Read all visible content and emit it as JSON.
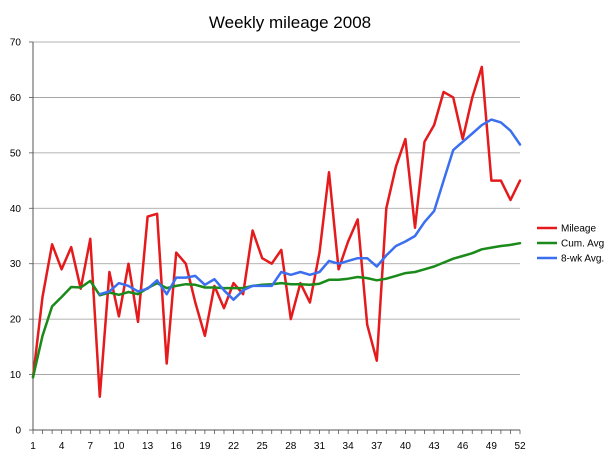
{
  "chart_data": {
    "type": "line",
    "title": "Weekly mileage 2008",
    "xlabel": "",
    "ylabel": "",
    "x": [
      1,
      2,
      3,
      4,
      5,
      6,
      7,
      8,
      9,
      10,
      11,
      12,
      13,
      14,
      15,
      16,
      17,
      18,
      19,
      20,
      21,
      22,
      23,
      24,
      25,
      26,
      27,
      28,
      29,
      30,
      31,
      32,
      33,
      34,
      35,
      36,
      37,
      38,
      39,
      40,
      41,
      42,
      43,
      44,
      45,
      46,
      47,
      48,
      49,
      50,
      51,
      52
    ],
    "x_tick_labels": [
      "1",
      "4",
      "7",
      "10",
      "13",
      "16",
      "19",
      "22",
      "25",
      "28",
      "31",
      "34",
      "37",
      "40",
      "43",
      "46",
      "49",
      "52"
    ],
    "y_ticks": [
      0,
      10,
      20,
      30,
      40,
      50,
      60,
      70
    ],
    "ylim": [
      0,
      70
    ],
    "grid": "horizontal",
    "legend_position": "right",
    "series": [
      {
        "name": "Mileage",
        "color": "#e41a1c",
        "values": [
          9.5,
          24,
          33.5,
          29,
          33,
          25.5,
          34.5,
          6,
          28.5,
          20.5,
          30,
          19.5,
          38.5,
          39,
          12,
          32,
          30,
          23,
          17,
          26,
          22,
          26.5,
          24.5,
          36,
          31,
          30,
          32.5,
          20,
          26.5,
          23,
          32,
          46.5,
          29,
          34,
          38,
          19,
          12.5,
          40,
          47.5,
          52.5,
          36.5,
          52,
          55,
          61,
          60,
          52.5,
          60,
          65.5,
          45,
          45,
          41.5,
          45
        ]
      },
      {
        "name": "Cum. Avg",
        "color": "#1a8a1a",
        "values": [
          9.5,
          17,
          22.3,
          24,
          25.8,
          25.7,
          26.9,
          24.3,
          24.8,
          24.4,
          24.9,
          24.5,
          25.6,
          26.5,
          25.6,
          26,
          26.3,
          26.2,
          25.7,
          25.7,
          25.6,
          25.6,
          25.6,
          26,
          26.2,
          26.3,
          26.5,
          26.3,
          26.3,
          26.2,
          26.4,
          27.1,
          27.1,
          27.3,
          27.6,
          27.4,
          27,
          27.3,
          27.8,
          28.3,
          28.5,
          29,
          29.5,
          30.2,
          30.9,
          31.4,
          31.9,
          32.6,
          32.9,
          33.2,
          33.4,
          33.7
        ]
      },
      {
        "name": "8-wk Avg.",
        "color": "#3b6ff0",
        "values": [
          null,
          null,
          null,
          null,
          null,
          null,
          null,
          24.5,
          25,
          26.5,
          26,
          25,
          25.5,
          27,
          24.5,
          27.5,
          27.5,
          27.8,
          26.2,
          27.2,
          25.2,
          23.5,
          25.2,
          26,
          26,
          26,
          28.5,
          28,
          28.5,
          28,
          28.5,
          30.5,
          30,
          30.5,
          31,
          31,
          29.5,
          31.5,
          33.2,
          34,
          35,
          37.5,
          39.5,
          45,
          50.5,
          52,
          53.5,
          55,
          56,
          55.5,
          54,
          51.5
        ]
      }
    ]
  }
}
